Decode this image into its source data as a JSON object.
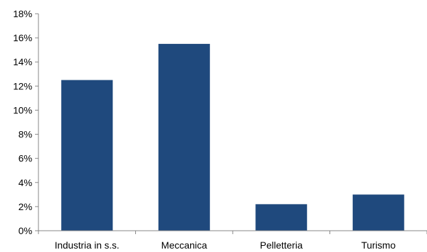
{
  "chart_data": {
    "type": "bar",
    "title": "",
    "xlabel": "",
    "ylabel": "",
    "categories": [
      "Industria in s.s.",
      "Meccanica",
      "Pelletteria",
      "Turismo"
    ],
    "values": [
      12.5,
      15.5,
      2.2,
      3.0
    ],
    "value_unit": "%",
    "ylim": [
      0,
      18
    ],
    "yticks": [
      0,
      2,
      4,
      6,
      8,
      10,
      12,
      14,
      16,
      18
    ],
    "ytick_labels": [
      "0%",
      "2%",
      "4%",
      "6%",
      "8%",
      "10%",
      "12%",
      "14%",
      "16%",
      "18%"
    ],
    "grid": false,
    "legend": "none",
    "bar_color": "#1F497D",
    "axis_color": "#868686"
  }
}
